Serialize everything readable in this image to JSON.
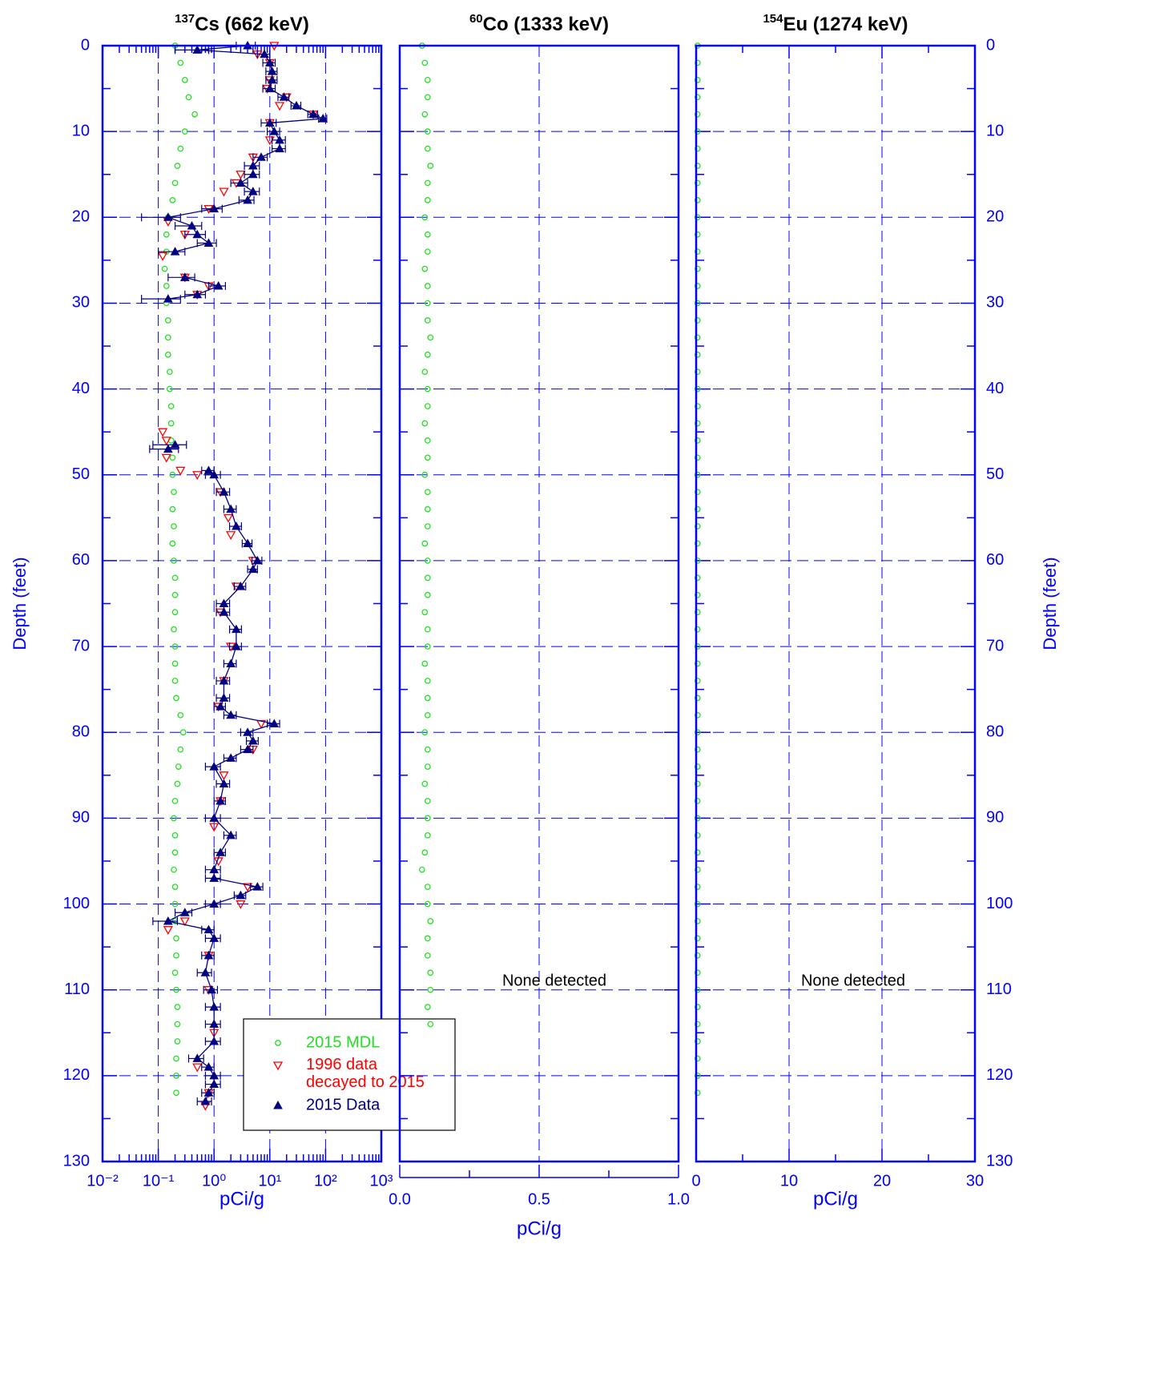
{
  "chart_data": [
    {
      "type": "scatter",
      "title_superscript": "137",
      "title": "Cs (662 keV)",
      "x_label": "pCi/g",
      "y_label": "Depth (feet)",
      "y_axis_side": "left",
      "x_scale": "log",
      "xlim": [
        0.01,
        1000
      ],
      "xticks": [
        {
          "value": 0.01,
          "label": "10⁻²"
        },
        {
          "value": 0.1,
          "label": "10⁻¹"
        },
        {
          "value": 1,
          "label": "10⁰"
        },
        {
          "value": 10,
          "label": "10¹"
        },
        {
          "value": 100,
          "label": "10²"
        },
        {
          "value": 1000,
          "label": "10³"
        }
      ],
      "ylim": [
        0,
        130
      ],
      "y_inverted": true,
      "yticks": [
        0,
        10,
        20,
        30,
        40,
        50,
        60,
        70,
        80,
        90,
        100,
        110,
        120,
        130
      ],
      "grid": true,
      "legend": "bottom-right",
      "series": [
        {
          "name": "2015 MDL",
          "color": "#22e022",
          "marker": "circle",
          "depth": [
            0,
            2,
            4,
            6,
            8,
            10,
            12,
            14,
            16,
            18,
            20,
            22,
            24,
            26,
            28,
            30,
            32,
            34,
            36,
            38,
            40,
            42,
            44,
            46,
            48,
            50,
            52,
            54,
            56,
            58,
            60,
            62,
            64,
            66,
            68,
            70,
            72,
            74,
            76,
            78,
            80,
            82,
            84,
            86,
            88,
            90,
            92,
            94,
            96,
            98,
            100,
            102,
            104,
            106,
            108,
            110,
            112,
            114,
            116,
            118,
            120,
            122
          ],
          "values": [
            0.2,
            0.25,
            0.3,
            0.35,
            0.45,
            0.3,
            0.25,
            0.22,
            0.2,
            0.18,
            0.15,
            0.14,
            0.14,
            0.13,
            0.14,
            0.14,
            0.15,
            0.15,
            0.15,
            0.16,
            0.16,
            0.17,
            0.17,
            0.17,
            0.18,
            0.18,
            0.19,
            0.18,
            0.19,
            0.18,
            0.19,
            0.2,
            0.2,
            0.2,
            0.19,
            0.2,
            0.2,
            0.2,
            0.21,
            0.25,
            0.28,
            0.25,
            0.23,
            0.22,
            0.2,
            0.19,
            0.2,
            0.2,
            0.19,
            0.2,
            0.2,
            0.2,
            0.21,
            0.21,
            0.2,
            0.21,
            0.22,
            0.22,
            0.22,
            0.21,
            0.21,
            0.21
          ]
        },
        {
          "name": "1996 data decayed to 2015",
          "color": "#ff0000",
          "marker": "triangle-down",
          "depth": [
            0,
            1,
            2,
            4,
            5,
            6,
            7,
            8,
            9,
            11,
            13,
            15,
            16,
            17,
            19,
            20.5,
            22,
            24.5,
            27,
            28,
            29,
            45,
            46,
            48,
            49.5,
            50,
            52,
            55,
            57,
            60,
            63,
            66,
            70,
            74,
            77,
            79,
            82,
            85,
            88,
            91,
            95,
            98,
            100,
            102,
            103,
            106,
            110,
            115,
            119,
            122,
            123.5
          ],
          "values": [
            12,
            6,
            10,
            10,
            9,
            20,
            15,
            60,
            10,
            10,
            5,
            3,
            2.5,
            1.5,
            0.8,
            0.15,
            0.3,
            0.12,
            0.3,
            0.8,
            0.5,
            0.12,
            0.14,
            0.14,
            0.25,
            0.5,
            1.3,
            1.8,
            2,
            5,
            2.5,
            1.3,
            2,
            1.5,
            1.2,
            7,
            5,
            1.5,
            1.3,
            1,
            1.2,
            4,
            3,
            0.3,
            0.15,
            0.8,
            0.8,
            1,
            0.5,
            0.8,
            0.7
          ]
        },
        {
          "name": "2015 Data",
          "color": "#000080",
          "marker": "triangle-up",
          "line": true,
          "depth": [
            0,
            0.5,
            1,
            2,
            3,
            4,
            5,
            6,
            7,
            8,
            8.5,
            9,
            10,
            11,
            12,
            13,
            14,
            15,
            16,
            17,
            18,
            19,
            20,
            21,
            22,
            23,
            24,
            25,
            27,
            28,
            29,
            29.5,
            38,
            46.5,
            47,
            48,
            49.5,
            50,
            52,
            54,
            56,
            58,
            60,
            61,
            63,
            65,
            66,
            68,
            70,
            72,
            74,
            76,
            77,
            78,
            79,
            80,
            81,
            82,
            83,
            84,
            86,
            88,
            90,
            92,
            94,
            96,
            97,
            98,
            99,
            100,
            101,
            102,
            103,
            104,
            106,
            108,
            110,
            112,
            114,
            116,
            118,
            119,
            120,
            121,
            122,
            123
          ],
          "values": [
            4,
            0.5,
            8,
            10,
            11,
            11,
            10,
            18,
            30,
            60,
            90,
            10,
            12,
            15,
            15,
            7,
            5,
            5,
            3,
            5,
            4,
            1,
            0.15,
            0.4,
            0.5,
            0.8,
            0.2,
            null,
            0.3,
            1.2,
            0.5,
            0.15,
            null,
            0.2,
            0.15,
            null,
            0.8,
            1,
            1.5,
            2,
            2.5,
            4,
            6,
            5,
            3,
            1.5,
            1.5,
            2.5,
            2.5,
            2,
            1.5,
            1.5,
            1.3,
            2,
            12,
            4,
            5,
            4,
            2,
            1,
            1.5,
            1.3,
            1,
            2,
            1.3,
            1,
            1,
            6,
            3,
            1,
            0.3,
            0.15,
            0.8,
            1,
            0.8,
            0.7,
            0.9,
            1,
            1,
            1,
            0.5,
            0.8,
            1,
            1,
            0.8,
            0.7
          ],
          "errors": [
            1.5,
            0.3,
            2,
            2.5,
            2.5,
            2.5,
            2.5,
            4,
            6,
            12,
            15,
            3,
            3,
            4,
            4,
            2,
            1.5,
            1.5,
            1,
            1.5,
            1.2,
            0.4,
            0.1,
            0.2,
            0.2,
            0.3,
            0.1,
            null,
            0.15,
            0.4,
            0.2,
            0.1,
            null,
            0.12,
            0.08,
            null,
            0.2,
            0.3,
            0.4,
            0.5,
            0.6,
            0.8,
            1.2,
            1,
            0.7,
            0.4,
            0.4,
            0.6,
            0.6,
            0.5,
            0.4,
            0.4,
            0.3,
            0.5,
            3,
            1,
            1.2,
            1,
            0.5,
            0.3,
            0.4,
            0.3,
            0.3,
            0.5,
            0.3,
            0.3,
            0.3,
            1.5,
            0.7,
            0.3,
            0.1,
            0.07,
            0.2,
            0.3,
            0.2,
            0.2,
            0.25,
            0.3,
            0.3,
            0.3,
            0.15,
            0.2,
            0.3,
            0.3,
            0.2,
            0.2
          ]
        }
      ]
    },
    {
      "type": "scatter",
      "title_superscript": "60",
      "title": "Co (1333 keV)",
      "x_label": "pCi/g",
      "y_axis_side": "none",
      "x_scale": "linear",
      "xlim": [
        0,
        1
      ],
      "xticks": [
        {
          "value": 0,
          "label": "0.0"
        },
        {
          "value": 0.5,
          "label": "0.5"
        },
        {
          "value": 1,
          "label": "1.0"
        }
      ],
      "ylim": [
        0,
        130
      ],
      "y_inverted": true,
      "yticks": [
        0,
        10,
        20,
        30,
        40,
        50,
        60,
        70,
        80,
        90,
        100,
        110,
        120,
        130
      ],
      "grid": true,
      "annotation": "None detected",
      "series": [
        {
          "name": "2015 MDL",
          "color": "#22e022",
          "marker": "circle",
          "depth": [
            0,
            2,
            4,
            6,
            8,
            10,
            12,
            14,
            16,
            18,
            20,
            22,
            24,
            26,
            28,
            30,
            32,
            34,
            36,
            38,
            40,
            42,
            44,
            46,
            48,
            50,
            52,
            54,
            56,
            58,
            60,
            62,
            64,
            66,
            68,
            70,
            72,
            74,
            76,
            78,
            80,
            82,
            84,
            86,
            88,
            90,
            92,
            94,
            96,
            98,
            100,
            102,
            104,
            106,
            108,
            110,
            112,
            114
          ],
          "values": [
            0.08,
            0.09,
            0.1,
            0.1,
            0.09,
            0.1,
            0.1,
            0.11,
            0.1,
            0.1,
            0.09,
            0.1,
            0.1,
            0.09,
            0.1,
            0.1,
            0.1,
            0.11,
            0.1,
            0.09,
            0.1,
            0.1,
            0.09,
            0.1,
            0.1,
            0.09,
            0.1,
            0.1,
            0.1,
            0.09,
            0.1,
            0.1,
            0.1,
            0.09,
            0.1,
            0.1,
            0.09,
            0.1,
            0.1,
            0.1,
            0.09,
            0.1,
            0.1,
            0.09,
            0.1,
            0.1,
            0.1,
            0.09,
            0.08,
            0.1,
            0.1,
            0.11,
            0.1,
            0.1,
            0.11,
            0.11,
            0.1,
            0.11
          ]
        }
      ]
    },
    {
      "type": "scatter",
      "title_superscript": "154",
      "title": "Eu (1274 keV)",
      "x_label": "pCi/g",
      "y_label": "Depth (feet)",
      "y_axis_side": "right",
      "x_scale": "linear",
      "xlim": [
        0,
        30
      ],
      "xticks": [
        0,
        10,
        20,
        30
      ],
      "ylim": [
        0,
        130
      ],
      "y_inverted": true,
      "yticks": [
        0,
        10,
        20,
        30,
        40,
        50,
        60,
        70,
        80,
        90,
        100,
        110,
        120,
        130
      ],
      "grid": true,
      "annotation": "None detected",
      "series": [
        {
          "name": "2015 MDL",
          "color": "#22e022",
          "marker": "circle",
          "depth": [
            0,
            2,
            4,
            6,
            8,
            10,
            12,
            14,
            16,
            18,
            20,
            22,
            24,
            26,
            28,
            30,
            32,
            34,
            36,
            38,
            40,
            42,
            44,
            46,
            48,
            50,
            52,
            54,
            56,
            58,
            60,
            62,
            64,
            66,
            68,
            70,
            72,
            74,
            76,
            78,
            80,
            82,
            84,
            86,
            88,
            90,
            92,
            94,
            96,
            98,
            100,
            102,
            104,
            106,
            108,
            110,
            112,
            114,
            116,
            118,
            120,
            122
          ],
          "values": [
            0.15,
            0.16,
            0.15,
            0.15,
            0.14,
            0.15,
            0.16,
            0.15,
            0.15,
            0.15,
            0.14,
            0.15,
            0.15,
            0.16,
            0.15,
            0.15,
            0.15,
            0.14,
            0.15,
            0.15,
            0.15,
            0.16,
            0.15,
            0.15,
            0.15,
            0.14,
            0.15,
            0.15,
            0.15,
            0.15,
            0.16,
            0.15,
            0.15,
            0.15,
            0.14,
            0.15,
            0.15,
            0.15,
            0.15,
            0.16,
            0.15,
            0.15,
            0.15,
            0.15,
            0.14,
            0.15,
            0.15,
            0.15,
            0.16,
            0.15,
            0.15,
            0.15,
            0.15,
            0.14,
            0.15,
            0.15,
            0.15,
            0.15,
            0.16,
            0.15,
            0.15,
            0.15
          ]
        }
      ]
    }
  ]
}
